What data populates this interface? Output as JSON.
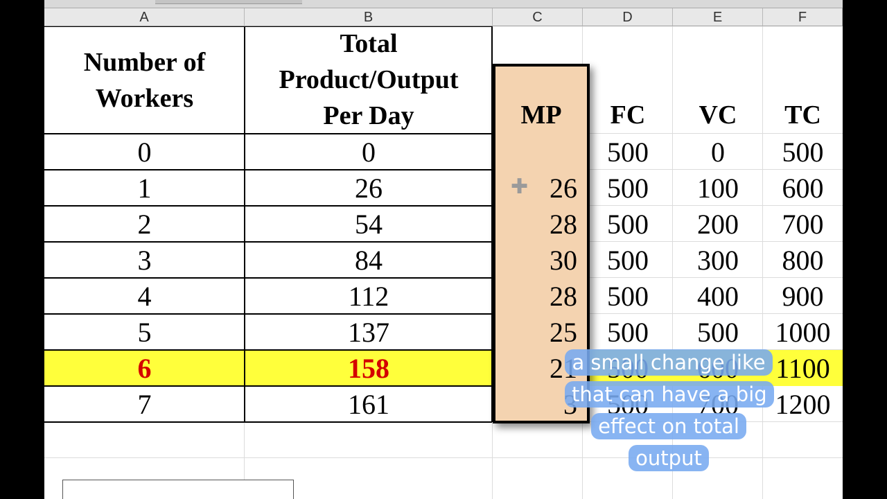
{
  "column_headers": [
    "A",
    "B",
    "C",
    "D",
    "E",
    "F"
  ],
  "table": {
    "headers": {
      "workers": [
        "Number of",
        "Workers"
      ],
      "output": [
        "Total",
        "Product/Output",
        "Per Day"
      ],
      "mp": "MP",
      "fc": "FC",
      "vc": "VC",
      "tc": "TC"
    },
    "rows": [
      {
        "workers": "0",
        "output": "0",
        "mp": "",
        "fc": "500",
        "vc": "0",
        "tc": "500"
      },
      {
        "workers": "1",
        "output": "26",
        "mp": "26",
        "fc": "500",
        "vc": "100",
        "tc": "600"
      },
      {
        "workers": "2",
        "output": "54",
        "mp": "28",
        "fc": "500",
        "vc": "200",
        "tc": "700"
      },
      {
        "workers": "3",
        "output": "84",
        "mp": "30",
        "fc": "500",
        "vc": "300",
        "tc": "800"
      },
      {
        "workers": "4",
        "output": "112",
        "mp": "28",
        "fc": "500",
        "vc": "400",
        "tc": "900"
      },
      {
        "workers": "5",
        "output": "137",
        "mp": "25",
        "fc": "500",
        "vc": "500",
        "tc": "1000"
      },
      {
        "workers": "6",
        "output": "158",
        "mp": "21",
        "fc": "500",
        "vc": "600",
        "tc": "1100"
      },
      {
        "workers": "7",
        "output": "161",
        "mp": "3",
        "fc": "500",
        "vc": "700",
        "tc": "1200"
      }
    ]
  },
  "highlight": {
    "row_index": 6,
    "row_color": "#ffff3b",
    "text_color": "#d40000",
    "mp_column_color": "#f4d3b0"
  },
  "caption": {
    "lines": [
      "a small change like",
      "that can have a big",
      "effect on total",
      "output"
    ],
    "background": "#78aaf0"
  },
  "cursor_icon": "crosshair-plus-icon"
}
